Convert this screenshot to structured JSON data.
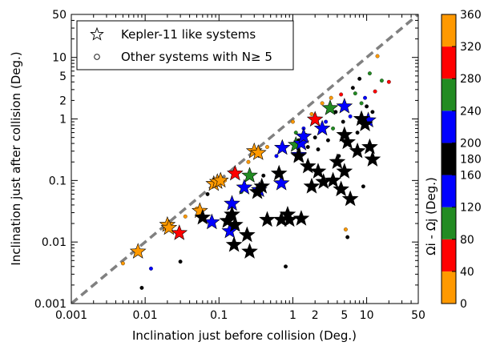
{
  "chart_data": {
    "type": "scatter",
    "xscale": "log",
    "yscale": "log",
    "xlim": [
      0.001,
      50
    ],
    "ylim": [
      0.001,
      50
    ],
    "xlabel": "Inclination just before collision (Deg.)",
    "ylabel": "Inclination just after collision (Deg.)",
    "x_ticks": [
      {
        "value": 0.001,
        "label": "0.001"
      },
      {
        "value": 0.01,
        "label": "0.01"
      },
      {
        "value": 0.1,
        "label": "0.1"
      },
      {
        "value": 1,
        "label": "1"
      },
      {
        "value": 2,
        "label": "2"
      },
      {
        "value": 5,
        "label": "5"
      },
      {
        "value": 10,
        "label": "10"
      },
      {
        "value": 50,
        "label": "50"
      }
    ],
    "y_ticks": [
      {
        "value": 0.001,
        "label": "0.001"
      },
      {
        "value": 0.01,
        "label": "0.01"
      },
      {
        "value": 0.1,
        "label": "0.1"
      },
      {
        "value": 1,
        "label": "1"
      },
      {
        "value": 2,
        "label": "2"
      },
      {
        "value": 5,
        "label": "5"
      },
      {
        "value": 10,
        "label": "10"
      },
      {
        "value": 50,
        "label": "50"
      }
    ],
    "reference_line": {
      "label": "y = x",
      "color": "#808080",
      "style": "dashed"
    },
    "legend": {
      "position": "top-left",
      "entries": [
        {
          "marker": "star",
          "label": "Kepler-11 like systems"
        },
        {
          "marker": "circle",
          "label": "Other systems with N≥ 5"
        }
      ]
    },
    "colorbar": {
      "label": "Ωi - Ωj (Deg.)",
      "range": [
        0,
        360
      ],
      "ticks": [
        "0",
        "40",
        "80",
        "120",
        "160",
        "180",
        "200",
        "240",
        "280",
        "320",
        "360"
      ],
      "segments": [
        {
          "from": 0,
          "to": 40,
          "color": "#ff9900"
        },
        {
          "from": 40,
          "to": 80,
          "color": "#ff0000"
        },
        {
          "from": 80,
          "to": 120,
          "color": "#228b22"
        },
        {
          "from": 120,
          "to": 160,
          "color": "#0000ff"
        },
        {
          "from": 160,
          "to": 200,
          "color": "#000000"
        },
        {
          "from": 200,
          "to": 240,
          "color": "#0000ff"
        },
        {
          "from": 240,
          "to": 280,
          "color": "#228b22"
        },
        {
          "from": 280,
          "to": 320,
          "color": "#ff0000"
        },
        {
          "from": 320,
          "to": 360,
          "color": "#ff9900"
        }
      ]
    },
    "series": [
      {
        "name": "Kepler-11 like systems",
        "marker": "star",
        "points": [
          {
            "x": 0.008,
            "y": 0.007,
            "c": "#ff9900"
          },
          {
            "x": 0.02,
            "y": 0.019,
            "c": "#ff9900"
          },
          {
            "x": 0.021,
            "y": 0.017,
            "c": "#ff9900"
          },
          {
            "x": 0.029,
            "y": 0.014,
            "c": "#ff0000"
          },
          {
            "x": 0.055,
            "y": 0.032,
            "c": "#ff9900"
          },
          {
            "x": 0.085,
            "y": 0.088,
            "c": "#ff9900"
          },
          {
            "x": 0.095,
            "y": 0.095,
            "c": "#ff9900"
          },
          {
            "x": 0.105,
            "y": 0.1,
            "c": "#ff9900"
          },
          {
            "x": 0.3,
            "y": 0.3,
            "c": "#ff9900"
          },
          {
            "x": 0.34,
            "y": 0.28,
            "c": "#ff9900"
          },
          {
            "x": 0.165,
            "y": 0.13,
            "c": "#ff0000"
          },
          {
            "x": 2.0,
            "y": 0.98,
            "c": "#ff0000"
          },
          {
            "x": 0.26,
            "y": 0.12,
            "c": "#228b22"
          },
          {
            "x": 1.1,
            "y": 0.38,
            "c": "#228b22"
          },
          {
            "x": 3.2,
            "y": 1.5,
            "c": "#228b22"
          },
          {
            "x": 0.08,
            "y": 0.021,
            "c": "#0000ff"
          },
          {
            "x": 0.14,
            "y": 0.015,
            "c": "#0000ff"
          },
          {
            "x": 0.15,
            "y": 0.042,
            "c": "#0000ff"
          },
          {
            "x": 0.22,
            "y": 0.077,
            "c": "#0000ff"
          },
          {
            "x": 0.35,
            "y": 0.07,
            "c": "#0000ff"
          },
          {
            "x": 0.7,
            "y": 0.09,
            "c": "#0000ff"
          },
          {
            "x": 0.72,
            "y": 0.34,
            "c": "#0000ff"
          },
          {
            "x": 1.2,
            "y": 0.26,
            "c": "#0000ff"
          },
          {
            "x": 1.3,
            "y": 0.4,
            "c": "#0000ff"
          },
          {
            "x": 1.4,
            "y": 0.52,
            "c": "#0000ff"
          },
          {
            "x": 2.5,
            "y": 0.7,
            "c": "#0000ff"
          },
          {
            "x": 5.0,
            "y": 1.6,
            "c": "#0000ff"
          },
          {
            "x": 10.5,
            "y": 0.95,
            "c": "#0000ff"
          },
          {
            "x": 0.06,
            "y": 0.025,
            "c": "#000000"
          },
          {
            "x": 0.13,
            "y": 0.022,
            "c": "#000000"
          },
          {
            "x": 0.15,
            "y": 0.028,
            "c": "#000000"
          },
          {
            "x": 0.16,
            "y": 0.009,
            "c": "#000000"
          },
          {
            "x": 0.165,
            "y": 0.019,
            "c": "#000000"
          },
          {
            "x": 0.24,
            "y": 0.013,
            "c": "#000000"
          },
          {
            "x": 0.26,
            "y": 0.007,
            "c": "#000000"
          },
          {
            "x": 0.33,
            "y": 0.065,
            "c": "#000000"
          },
          {
            "x": 0.38,
            "y": 0.08,
            "c": "#000000"
          },
          {
            "x": 0.45,
            "y": 0.023,
            "c": "#000000"
          },
          {
            "x": 0.65,
            "y": 0.13,
            "c": "#000000"
          },
          {
            "x": 0.7,
            "y": 0.023,
            "c": "#000000"
          },
          {
            "x": 0.85,
            "y": 0.028,
            "c": "#000000"
          },
          {
            "x": 0.9,
            "y": 0.023,
            "c": "#000000"
          },
          {
            "x": 1.2,
            "y": 0.25,
            "c": "#000000"
          },
          {
            "x": 1.3,
            "y": 0.024,
            "c": "#000000"
          },
          {
            "x": 1.6,
            "y": 0.17,
            "c": "#000000"
          },
          {
            "x": 1.8,
            "y": 0.08,
            "c": "#000000"
          },
          {
            "x": 2.2,
            "y": 0.14,
            "c": "#000000"
          },
          {
            "x": 2.6,
            "y": 0.095,
            "c": "#000000"
          },
          {
            "x": 3.5,
            "y": 0.1,
            "c": "#000000"
          },
          {
            "x": 4.0,
            "y": 0.2,
            "c": "#000000"
          },
          {
            "x": 4.5,
            "y": 0.072,
            "c": "#000000"
          },
          {
            "x": 5.0,
            "y": 0.14,
            "c": "#000000"
          },
          {
            "x": 5.0,
            "y": 0.55,
            "c": "#000000"
          },
          {
            "x": 5.5,
            "y": 0.42,
            "c": "#000000"
          },
          {
            "x": 6.0,
            "y": 0.05,
            "c": "#000000"
          },
          {
            "x": 7.5,
            "y": 0.3,
            "c": "#000000"
          },
          {
            "x": 8.5,
            "y": 1.0,
            "c": "#000000"
          },
          {
            "x": 9.5,
            "y": 0.82,
            "c": "#000000"
          },
          {
            "x": 11.0,
            "y": 0.35,
            "c": "#000000"
          },
          {
            "x": 12.0,
            "y": 0.22,
            "c": "#000000"
          }
        ]
      },
      {
        "name": "Other systems with N≥ 5",
        "marker": "circle",
        "points": [
          {
            "x": 0.005,
            "y": 0.0045,
            "c": "#ff9900"
          },
          {
            "x": 0.009,
            "y": 0.0018,
            "c": "#000000"
          },
          {
            "x": 0.012,
            "y": 0.0037,
            "c": "#0000ff"
          },
          {
            "x": 0.03,
            "y": 0.0048,
            "c": "#000000"
          },
          {
            "x": 0.035,
            "y": 0.026,
            "c": "#ff9900"
          },
          {
            "x": 0.05,
            "y": 0.035,
            "c": "#ff9900"
          },
          {
            "x": 0.07,
            "y": 0.06,
            "c": "#000000"
          },
          {
            "x": 0.12,
            "y": 0.1,
            "c": "#ff9900"
          },
          {
            "x": 0.2,
            "y": 0.065,
            "c": "#228b22"
          },
          {
            "x": 0.25,
            "y": 0.2,
            "c": "#ff9900"
          },
          {
            "x": 0.4,
            "y": 0.12,
            "c": "#000000"
          },
          {
            "x": 0.45,
            "y": 0.35,
            "c": "#ff9900"
          },
          {
            "x": 0.6,
            "y": 0.25,
            "c": "#0000ff"
          },
          {
            "x": 0.8,
            "y": 0.004,
            "c": "#000000"
          },
          {
            "x": 1.0,
            "y": 0.9,
            "c": "#ff9900"
          },
          {
            "x": 1.1,
            "y": 0.6,
            "c": "#228b22"
          },
          {
            "x": 1.2,
            "y": 0.45,
            "c": "#000000"
          },
          {
            "x": 1.4,
            "y": 0.7,
            "c": "#0000ff"
          },
          {
            "x": 1.5,
            "y": 0.55,
            "c": "#228b22"
          },
          {
            "x": 1.6,
            "y": 0.35,
            "c": "#000000"
          },
          {
            "x": 1.8,
            "y": 1.2,
            "c": "#ff9900"
          },
          {
            "x": 2.0,
            "y": 0.5,
            "c": "#000000"
          },
          {
            "x": 2.2,
            "y": 0.32,
            "c": "#000000"
          },
          {
            "x": 2.5,
            "y": 1.8,
            "c": "#ff9900"
          },
          {
            "x": 2.8,
            "y": 0.9,
            "c": "#0000ff"
          },
          {
            "x": 3.0,
            "y": 0.45,
            "c": "#000000"
          },
          {
            "x": 3.3,
            "y": 2.2,
            "c": "#ff9900"
          },
          {
            "x": 3.5,
            "y": 0.7,
            "c": "#228b22"
          },
          {
            "x": 3.8,
            "y": 1.3,
            "c": "#000000"
          },
          {
            "x": 4.2,
            "y": 0.25,
            "c": "#000000"
          },
          {
            "x": 4.5,
            "y": 2.5,
            "c": "#ff0000"
          },
          {
            "x": 4.8,
            "y": 0.9,
            "c": "#000000"
          },
          {
            "x": 5.2,
            "y": 0.016,
            "c": "#ff9900"
          },
          {
            "x": 5.5,
            "y": 0.012,
            "c": "#000000"
          },
          {
            "x": 6.0,
            "y": 1.1,
            "c": "#0000ff"
          },
          {
            "x": 6.5,
            "y": 3.2,
            "c": "#000000"
          },
          {
            "x": 7.0,
            "y": 2.6,
            "c": "#228b22"
          },
          {
            "x": 7.5,
            "y": 0.6,
            "c": "#000000"
          },
          {
            "x": 8.0,
            "y": 4.5,
            "c": "#000000"
          },
          {
            "x": 8.5,
            "y": 1.8,
            "c": "#228b22"
          },
          {
            "x": 9.0,
            "y": 0.08,
            "c": "#000000"
          },
          {
            "x": 9.5,
            "y": 2.2,
            "c": "#0000ff"
          },
          {
            "x": 10.0,
            "y": 1.6,
            "c": "#000000"
          },
          {
            "x": 11.0,
            "y": 5.5,
            "c": "#228b22"
          },
          {
            "x": 12.0,
            "y": 1.3,
            "c": "#000000"
          },
          {
            "x": 13.0,
            "y": 2.8,
            "c": "#ff0000"
          },
          {
            "x": 14.0,
            "y": 10.5,
            "c": "#ff9900"
          },
          {
            "x": 16.0,
            "y": 4.2,
            "c": "#228b22"
          },
          {
            "x": 20.0,
            "y": 4.0,
            "c": "#ff0000"
          }
        ]
      }
    ]
  }
}
